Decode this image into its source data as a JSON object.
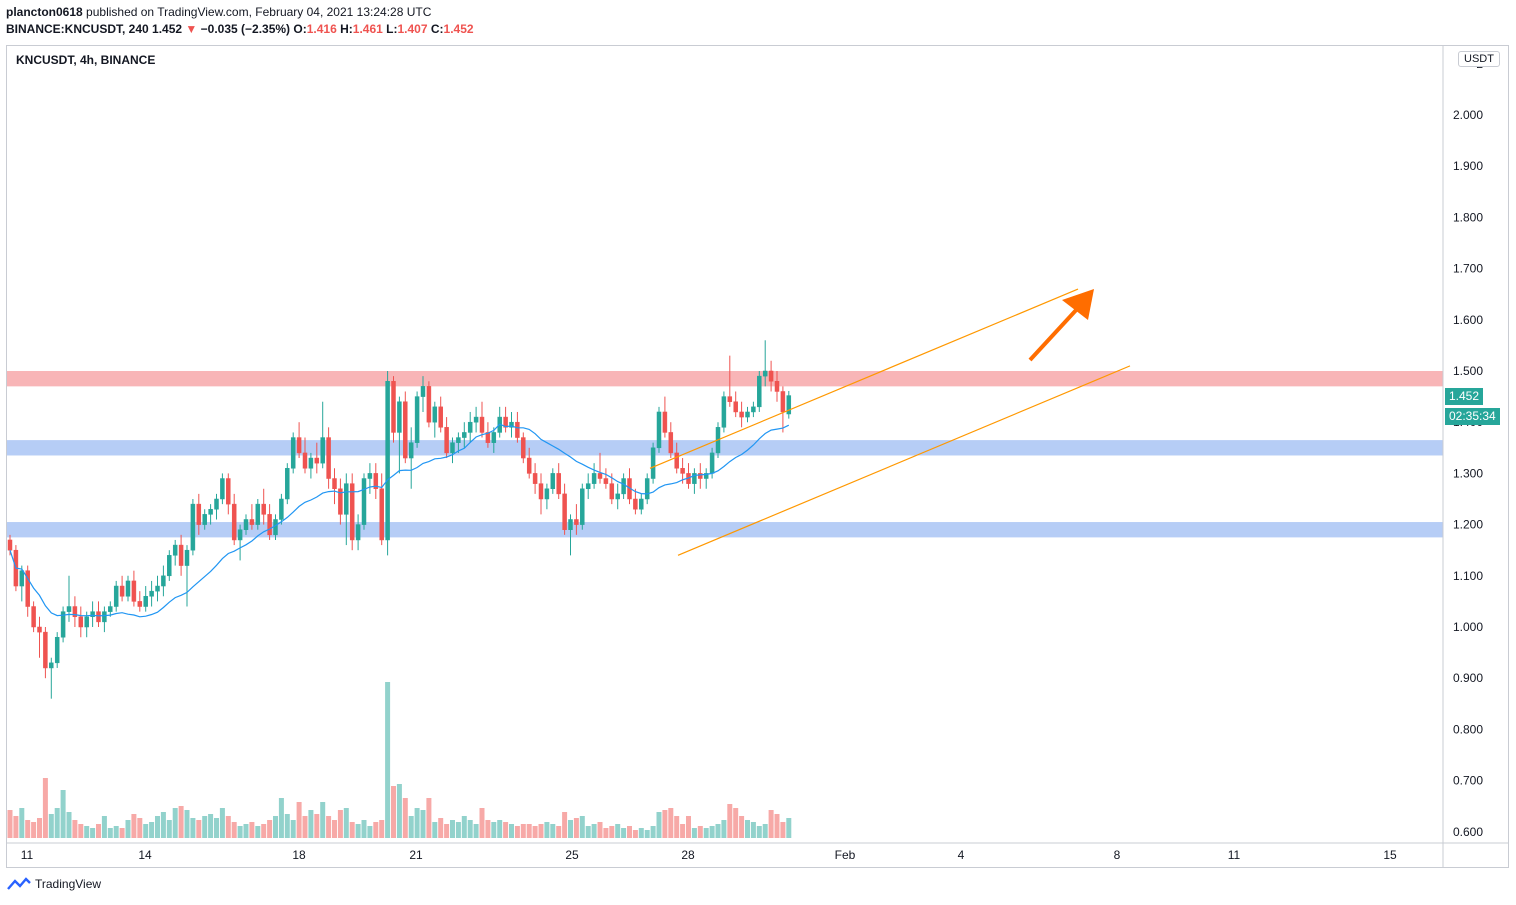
{
  "header": {
    "author": "plancton0618",
    "published": "published on TradingView.com, February 04, 2021 13:24:28 UTC",
    "symbol_line": "BINANCE:KNCUSDT, 240",
    "last": "1.452",
    "change_arrow": "▼",
    "change": "−0.035 (−2.35%)",
    "o_label": "O:",
    "o": "1.416",
    "h_label": "H:",
    "h": "1.461",
    "l_label": "L:",
    "l": "1.407",
    "c_label": "C:",
    "c": "1.452"
  },
  "chart_label": "KNCUSDT, 4h, BINANCE",
  "currency_badge": "USDT",
  "price_tag": "1.452",
  "countdown_tag": "02:35:34",
  "branding": "TradingView",
  "colors": {
    "up": "#26a69a",
    "down": "#ef5350",
    "ma": "#2196f3",
    "channel": "#ff9800",
    "arrow": "#ff6d00",
    "resistance_zone": "#f7a8aa",
    "support_zone": "#a9c4f5"
  },
  "chart_data": {
    "type": "candlestick",
    "title": "",
    "ylim": [
      0.58,
      2.1
    ],
    "y_ticks": [
      "2",
      "2.000",
      "1.900",
      "1.800",
      "1.700",
      "1.600",
      "1.500",
      "1.400",
      "1.300",
      "1.200",
      "1.100",
      "1.000",
      "0.900",
      "0.800",
      "0.700",
      "0.600"
    ],
    "x_ticks": [
      "11",
      "14",
      "18",
      "21",
      "25",
      "28",
      "Feb",
      "4",
      "8",
      "11",
      "15"
    ],
    "zones": [
      {
        "name": "resistance",
        "from": 1.47,
        "to": 1.5
      },
      {
        "name": "support-upper",
        "from": 1.335,
        "to": 1.365
      },
      {
        "name": "support-lower",
        "from": 1.175,
        "to": 1.205
      }
    ],
    "channel": {
      "upper": [
        {
          "date": "Jan 25",
          "y": 1.3
        },
        {
          "date": "Feb 7",
          "y": 1.66
        }
      ],
      "lower": [
        {
          "date": "Jan 27",
          "y": 1.14
        },
        {
          "date": "Feb 8",
          "y": 1.51
        }
      ]
    },
    "candles_approx": [
      [
        1.17,
        1.18,
        1.14,
        1.15
      ],
      [
        1.15,
        1.16,
        1.07,
        1.08
      ],
      [
        1.08,
        1.12,
        1.05,
        1.11
      ],
      [
        1.11,
        1.12,
        1.02,
        1.04
      ],
      [
        1.04,
        1.05,
        0.99,
        1.0
      ],
      [
        1.0,
        1.02,
        0.94,
        0.99
      ],
      [
        0.99,
        1.0,
        0.9,
        0.92
      ],
      [
        0.92,
        0.94,
        0.86,
        0.93
      ],
      [
        0.93,
        0.99,
        0.92,
        0.98
      ],
      [
        0.98,
        1.04,
        0.97,
        1.03
      ],
      [
        1.03,
        1.1,
        1.01,
        1.04
      ],
      [
        1.04,
        1.06,
        1.0,
        1.02
      ],
      [
        1.02,
        1.04,
        0.98,
        1.0
      ],
      [
        1.0,
        1.03,
        0.98,
        1.02
      ],
      [
        1.02,
        1.05,
        1.0,
        1.03
      ],
      [
        1.03,
        1.05,
        1.0,
        1.01
      ],
      [
        1.01,
        1.04,
        0.99,
        1.03
      ],
      [
        1.03,
        1.05,
        1.02,
        1.04
      ],
      [
        1.04,
        1.09,
        1.03,
        1.08
      ],
      [
        1.08,
        1.1,
        1.05,
        1.06
      ],
      [
        1.06,
        1.1,
        1.05,
        1.09
      ],
      [
        1.09,
        1.11,
        1.04,
        1.05
      ],
      [
        1.05,
        1.07,
        1.03,
        1.04
      ],
      [
        1.04,
        1.08,
        1.03,
        1.06
      ],
      [
        1.06,
        1.09,
        1.04,
        1.07
      ],
      [
        1.07,
        1.1,
        1.05,
        1.08
      ],
      [
        1.08,
        1.12,
        1.06,
        1.1
      ],
      [
        1.1,
        1.15,
        1.09,
        1.14
      ],
      [
        1.14,
        1.17,
        1.12,
        1.16
      ],
      [
        1.16,
        1.18,
        1.1,
        1.12
      ],
      [
        1.12,
        1.16,
        1.04,
        1.15
      ],
      [
        1.15,
        1.25,
        1.14,
        1.24
      ],
      [
        1.24,
        1.26,
        1.18,
        1.2
      ],
      [
        1.2,
        1.23,
        1.19,
        1.22
      ],
      [
        1.22,
        1.24,
        1.2,
        1.23
      ],
      [
        1.23,
        1.26,
        1.21,
        1.25
      ],
      [
        1.25,
        1.3,
        1.24,
        1.29
      ],
      [
        1.29,
        1.3,
        1.22,
        1.24
      ],
      [
        1.24,
        1.26,
        1.16,
        1.17
      ],
      [
        1.17,
        1.2,
        1.13,
        1.19
      ],
      [
        1.19,
        1.22,
        1.18,
        1.21
      ],
      [
        1.21,
        1.24,
        1.19,
        1.2
      ],
      [
        1.2,
        1.25,
        1.19,
        1.24
      ],
      [
        1.24,
        1.27,
        1.2,
        1.22
      ],
      [
        1.22,
        1.24,
        1.17,
        1.18
      ],
      [
        1.18,
        1.22,
        1.17,
        1.21
      ],
      [
        1.21,
        1.26,
        1.2,
        1.25
      ],
      [
        1.25,
        1.32,
        1.24,
        1.31
      ],
      [
        1.31,
        1.38,
        1.3,
        1.37
      ],
      [
        1.37,
        1.4,
        1.33,
        1.34
      ],
      [
        1.34,
        1.37,
        1.3,
        1.31
      ],
      [
        1.31,
        1.34,
        1.29,
        1.33
      ],
      [
        1.33,
        1.36,
        1.3,
        1.32
      ],
      [
        1.32,
        1.44,
        1.31,
        1.37
      ],
      [
        1.37,
        1.39,
        1.27,
        1.29
      ],
      [
        1.29,
        1.31,
        1.24,
        1.27
      ],
      [
        1.27,
        1.29,
        1.2,
        1.22
      ],
      [
        1.22,
        1.3,
        1.16,
        1.28
      ],
      [
        1.28,
        1.3,
        1.15,
        1.17
      ],
      [
        1.17,
        1.22,
        1.15,
        1.2
      ],
      [
        1.2,
        1.3,
        1.19,
        1.29
      ],
      [
        1.29,
        1.32,
        1.26,
        1.3
      ],
      [
        1.3,
        1.32,
        1.25,
        1.27
      ],
      [
        1.27,
        1.3,
        1.16,
        1.17
      ],
      [
        1.17,
        1.5,
        1.14,
        1.48
      ],
      [
        1.48,
        1.49,
        1.36,
        1.38
      ],
      [
        1.38,
        1.45,
        1.3,
        1.44
      ],
      [
        1.44,
        1.46,
        1.32,
        1.33
      ],
      [
        1.33,
        1.39,
        1.27,
        1.36
      ],
      [
        1.36,
        1.46,
        1.35,
        1.45
      ],
      [
        1.45,
        1.49,
        1.42,
        1.47
      ],
      [
        1.47,
        1.48,
        1.39,
        1.4
      ],
      [
        1.4,
        1.44,
        1.37,
        1.43
      ],
      [
        1.43,
        1.45,
        1.38,
        1.39
      ],
      [
        1.39,
        1.41,
        1.33,
        1.34
      ],
      [
        1.34,
        1.37,
        1.32,
        1.36
      ],
      [
        1.36,
        1.38,
        1.34,
        1.37
      ],
      [
        1.37,
        1.4,
        1.35,
        1.38
      ],
      [
        1.38,
        1.42,
        1.36,
        1.4
      ],
      [
        1.4,
        1.43,
        1.38,
        1.41
      ],
      [
        1.41,
        1.44,
        1.37,
        1.38
      ],
      [
        1.38,
        1.4,
        1.35,
        1.36
      ],
      [
        1.36,
        1.39,
        1.34,
        1.38
      ],
      [
        1.38,
        1.43,
        1.37,
        1.41
      ],
      [
        1.41,
        1.43,
        1.38,
        1.39
      ],
      [
        1.39,
        1.42,
        1.37,
        1.4
      ],
      [
        1.4,
        1.42,
        1.36,
        1.37
      ],
      [
        1.37,
        1.38,
        1.32,
        1.33
      ],
      [
        1.33,
        1.35,
        1.29,
        1.3
      ],
      [
        1.3,
        1.32,
        1.26,
        1.28
      ],
      [
        1.28,
        1.3,
        1.22,
        1.25
      ],
      [
        1.25,
        1.28,
        1.23,
        1.27
      ],
      [
        1.27,
        1.31,
        1.26,
        1.3
      ],
      [
        1.3,
        1.32,
        1.25,
        1.26
      ],
      [
        1.26,
        1.28,
        1.18,
        1.19
      ],
      [
        1.19,
        1.22,
        1.14,
        1.21
      ],
      [
        1.21,
        1.24,
        1.18,
        1.2
      ],
      [
        1.2,
        1.28,
        1.19,
        1.27
      ],
      [
        1.27,
        1.3,
        1.25,
        1.28
      ],
      [
        1.28,
        1.32,
        1.27,
        1.3
      ],
      [
        1.3,
        1.34,
        1.28,
        1.29
      ],
      [
        1.29,
        1.31,
        1.27,
        1.28
      ],
      [
        1.28,
        1.3,
        1.24,
        1.25
      ],
      [
        1.25,
        1.28,
        1.23,
        1.26
      ],
      [
        1.26,
        1.3,
        1.25,
        1.29
      ],
      [
        1.29,
        1.31,
        1.24,
        1.25
      ],
      [
        1.25,
        1.27,
        1.22,
        1.23
      ],
      [
        1.23,
        1.26,
        1.22,
        1.25
      ],
      [
        1.25,
        1.3,
        1.24,
        1.29
      ],
      [
        1.29,
        1.36,
        1.28,
        1.35
      ],
      [
        1.35,
        1.43,
        1.34,
        1.42
      ],
      [
        1.42,
        1.45,
        1.37,
        1.38
      ],
      [
        1.38,
        1.4,
        1.33,
        1.34
      ],
      [
        1.34,
        1.36,
        1.3,
        1.31
      ],
      [
        1.31,
        1.33,
        1.28,
        1.3
      ],
      [
        1.3,
        1.32,
        1.27,
        1.28
      ],
      [
        1.28,
        1.31,
        1.26,
        1.3
      ],
      [
        1.3,
        1.32,
        1.27,
        1.29
      ],
      [
        1.29,
        1.31,
        1.27,
        1.3
      ],
      [
        1.3,
        1.35,
        1.29,
        1.34
      ],
      [
        1.34,
        1.4,
        1.33,
        1.39
      ],
      [
        1.39,
        1.46,
        1.38,
        1.45
      ],
      [
        1.45,
        1.53,
        1.43,
        1.44
      ],
      [
        1.44,
        1.46,
        1.41,
        1.42
      ],
      [
        1.42,
        1.44,
        1.39,
        1.41
      ],
      [
        1.41,
        1.43,
        1.4,
        1.42
      ],
      [
        1.42,
        1.44,
        1.41,
        1.43
      ],
      [
        1.43,
        1.5,
        1.42,
        1.49
      ],
      [
        1.49,
        1.56,
        1.47,
        1.5
      ],
      [
        1.5,
        1.52,
        1.46,
        1.48
      ],
      [
        1.48,
        1.5,
        1.44,
        1.46
      ],
      [
        1.46,
        1.47,
        1.38,
        1.42
      ],
      [
        1.416,
        1.461,
        1.407,
        1.452
      ]
    ],
    "moving_average": "approximate 20-period MA (blue)",
    "annotations": [
      "ascending channel",
      "upward arrow"
    ]
  }
}
